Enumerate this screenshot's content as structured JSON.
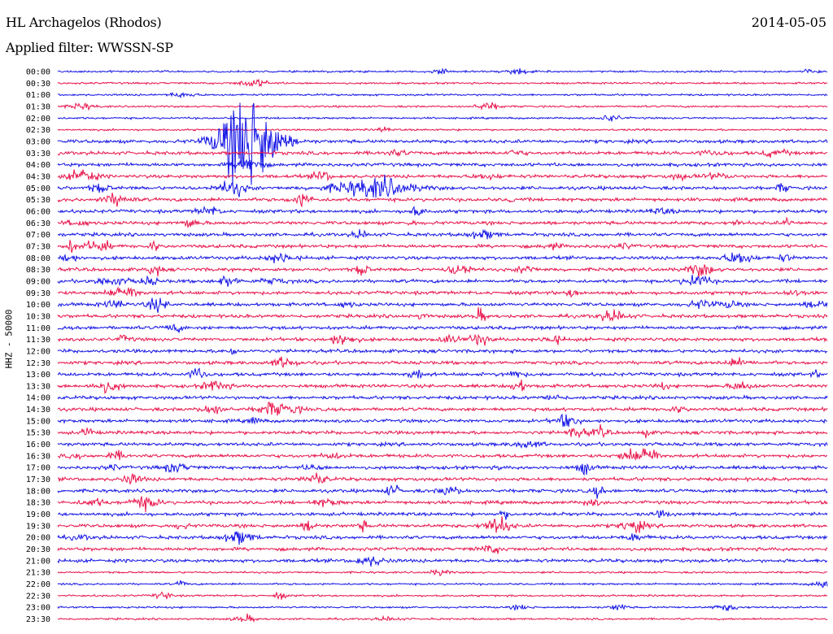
{
  "header": {
    "station": "HL Archagelos (Rhodos)",
    "filter": "Applied filter: WWSSN-SP",
    "date": "2014-05-05"
  },
  "chart_data": {
    "type": "line",
    "title": "HL Archagelos (Rhodos)",
    "subtitle": "Applied filter: WWSSN-SP",
    "ylabel": "HHZ - 50000",
    "rows": [
      "00:00",
      "00:30",
      "01:00",
      "01:30",
      "02:00",
      "02:30",
      "03:00",
      "03:30",
      "04:00",
      "04:30",
      "05:00",
      "05:30",
      "06:00",
      "06:30",
      "07:00",
      "07:30",
      "08:00",
      "08:30",
      "09:00",
      "09:30",
      "10:00",
      "10:30",
      "11:00",
      "11:30",
      "12:00",
      "12:30",
      "13:00",
      "13:30",
      "14:00",
      "14:30",
      "15:00",
      "15:30",
      "16:00",
      "16:30",
      "17:00",
      "17:30",
      "18:00",
      "18:30",
      "19:00",
      "19:30",
      "20:00",
      "20:30",
      "21:00",
      "21:30",
      "22:00",
      "22:30",
      "23:00",
      "23:30"
    ],
    "x_range_minutes": [
      0,
      30
    ],
    "trace_colors": [
      "#1414e6",
      "#e8144b"
    ],
    "events": [
      {
        "row": "03:00",
        "minute": 6.9,
        "amplitude": "very large",
        "duration_min": 1.8
      },
      {
        "row": "05:00",
        "minute": 11.5,
        "amplitude": "large",
        "duration_min": 2.5
      },
      {
        "row": "19:30",
        "minute": 16.9,
        "amplitude": "large",
        "duration_min": 0.8
      }
    ]
  }
}
